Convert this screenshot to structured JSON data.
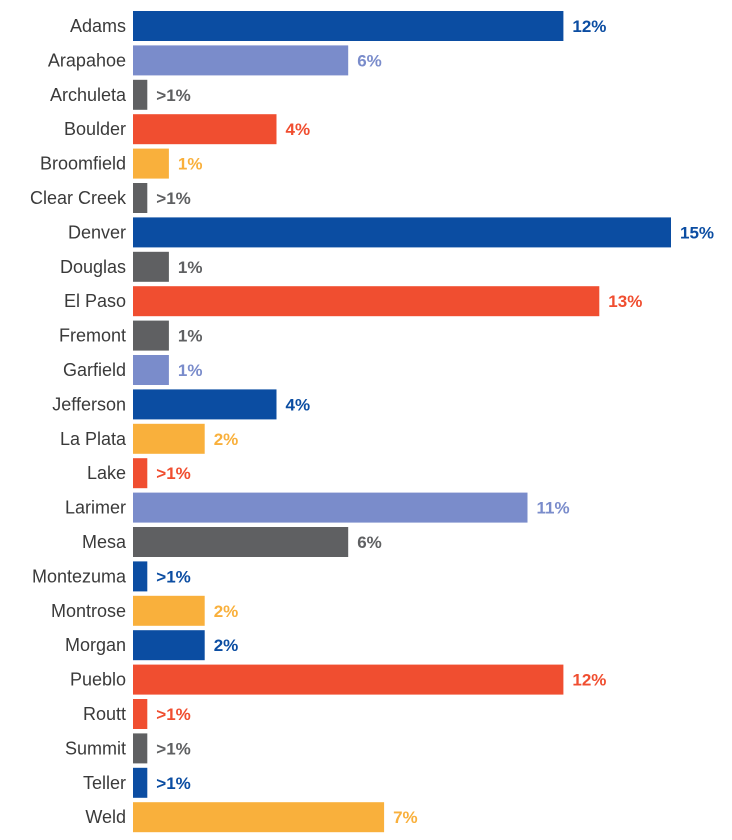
{
  "chart_data": {
    "type": "bar",
    "orientation": "horizontal",
    "title": "",
    "xlabel": "",
    "ylabel": "",
    "xlim": [
      0,
      15
    ],
    "grid": false,
    "legend": "none",
    "colors": {
      "blue": "#0b4da2",
      "lavender": "#7a8ccb",
      "gray": "#5f6062",
      "red": "#f04e30",
      "yellow": "#f9b03c"
    },
    "bars": [
      {
        "category": "Adams",
        "value": 12,
        "label": "12%",
        "color": "blue"
      },
      {
        "category": "Arapahoe",
        "value": 6,
        "label": "6%",
        "color": "lavender"
      },
      {
        "category": "Archuleta",
        "value": 0.4,
        "label": ">1%",
        "color": "gray"
      },
      {
        "category": "Boulder",
        "value": 4,
        "label": "4%",
        "color": "red"
      },
      {
        "category": "Broomfield",
        "value": 1,
        "label": "1%",
        "color": "yellow"
      },
      {
        "category": "Clear Creek",
        "value": 0.4,
        "label": ">1%",
        "color": "gray"
      },
      {
        "category": "Denver",
        "value": 15,
        "label": "15%",
        "color": "blue"
      },
      {
        "category": "Douglas",
        "value": 1,
        "label": "1%",
        "color": "gray"
      },
      {
        "category": "El Paso",
        "value": 13,
        "label": "13%",
        "color": "red"
      },
      {
        "category": "Fremont",
        "value": 1,
        "label": "1%",
        "color": "gray"
      },
      {
        "category": "Garfield",
        "value": 1,
        "label": "1%",
        "color": "lavender"
      },
      {
        "category": "Jefferson",
        "value": 4,
        "label": "4%",
        "color": "blue"
      },
      {
        "category": "La Plata",
        "value": 2,
        "label": "2%",
        "color": "yellow"
      },
      {
        "category": "Lake",
        "value": 0.4,
        "label": ">1%",
        "color": "red"
      },
      {
        "category": "Larimer",
        "value": 11,
        "label": "11%",
        "color": "lavender"
      },
      {
        "category": "Mesa",
        "value": 6,
        "label": "6%",
        "color": "gray"
      },
      {
        "category": "Montezuma",
        "value": 0.4,
        "label": ">1%",
        "color": "blue"
      },
      {
        "category": "Montrose",
        "value": 2,
        "label": "2%",
        "color": "yellow"
      },
      {
        "category": "Morgan",
        "value": 2,
        "label": "2%",
        "color": "blue"
      },
      {
        "category": "Pueblo",
        "value": 12,
        "label": "12%",
        "color": "red"
      },
      {
        "category": "Routt",
        "value": 0.4,
        "label": ">1%",
        "color": "red"
      },
      {
        "category": "Summit",
        "value": 0.4,
        "label": ">1%",
        "color": "gray"
      },
      {
        "category": "Teller",
        "value": 0.4,
        "label": ">1%",
        "color": "blue"
      },
      {
        "category": "Weld",
        "value": 7,
        "label": "7%",
        "color": "yellow"
      }
    ]
  }
}
